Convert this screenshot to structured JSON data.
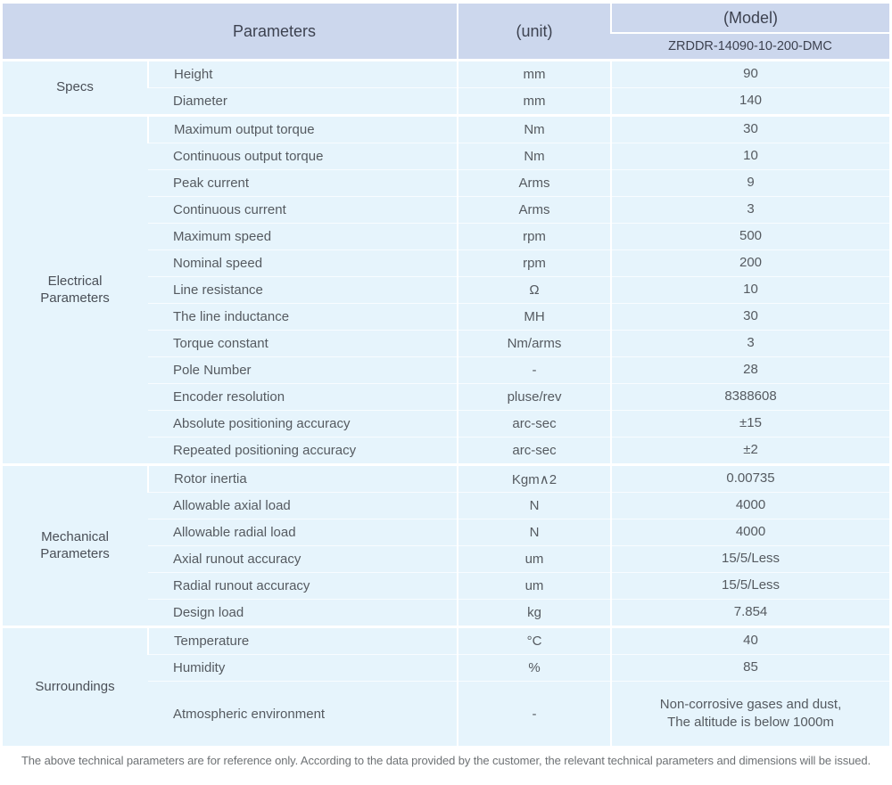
{
  "colors": {
    "header_bg": "#ccd7ed",
    "cell_bg": "#e6f4fc",
    "header_text": "#3d4250",
    "body_text": "#555a60",
    "footer_text": "#6e7275",
    "separator": "#ffffff"
  },
  "table": {
    "header": {
      "parameters": "Parameters",
      "unit": "(unit)",
      "model": "(Model)",
      "model_number": "ZRDDR-14090-10-200-DMC"
    },
    "sections": [
      {
        "label": "Specs",
        "rows": [
          {
            "param": "Height",
            "unit": "mm",
            "value": "90"
          },
          {
            "param": "Diameter",
            "unit": "mm",
            "value": "140"
          }
        ]
      },
      {
        "label": "Electrical\nParameters",
        "rows": [
          {
            "param": "Maximum output torque",
            "unit": "Nm",
            "value": "30"
          },
          {
            "param": "Continuous output torque",
            "unit": "Nm",
            "value": "10"
          },
          {
            "param": "Peak current",
            "unit": "Arms",
            "value": "9"
          },
          {
            "param": "Continuous current",
            "unit": "Arms",
            "value": "3"
          },
          {
            "param": "Maximum speed",
            "unit": "rpm",
            "value": "500"
          },
          {
            "param": "Nominal speed",
            "unit": "rpm",
            "value": "200"
          },
          {
            "param": "Line resistance",
            "unit": "Ω",
            "value": "10"
          },
          {
            "param": "The line inductance",
            "unit": "MH",
            "value": "30"
          },
          {
            "param": "Torque constant",
            "unit": "Nm/arms",
            "value": "3"
          },
          {
            "param": "Pole Number",
            "unit": "-",
            "value": "28"
          },
          {
            "param": "Encoder resolution",
            "unit": "pluse/rev",
            "value": "8388608"
          },
          {
            "param": "Absolute positioning accuracy",
            "unit": "arc-sec",
            "value": "±15"
          },
          {
            "param": "Repeated positioning accuracy",
            "unit": "arc-sec",
            "value": "±2"
          }
        ]
      },
      {
        "label": "Mechanical\nParameters",
        "rows": [
          {
            "param": "Rotor inertia",
            "unit": "Kgm∧2",
            "value": "0.00735"
          },
          {
            "param": "Allowable axial load",
            "unit": "N",
            "value": "4000"
          },
          {
            "param": "Allowable radial load",
            "unit": "N",
            "value": "4000"
          },
          {
            "param": "Axial runout accuracy",
            "unit": "um",
            "value": "15/5/Less"
          },
          {
            "param": "Radial runout accuracy",
            "unit": "um",
            "value": "15/5/Less"
          },
          {
            "param": "Design load",
            "unit": "kg",
            "value": "7.854"
          }
        ]
      },
      {
        "label": "Surroundings",
        "rows": [
          {
            "param": "Temperature",
            "unit": "°C",
            "value": "40"
          },
          {
            "param": "Humidity",
            "unit": "%",
            "value": "85"
          },
          {
            "param": "Atmospheric environment",
            "unit": "-",
            "value": "Non-corrosive gases and dust,\nThe altitude is below 1000m"
          }
        ]
      }
    ]
  },
  "footer": {
    "note": "The above technical parameters are for reference only. According to the data provided by the customer, the relevant technical parameters and dimensions will be issued."
  }
}
